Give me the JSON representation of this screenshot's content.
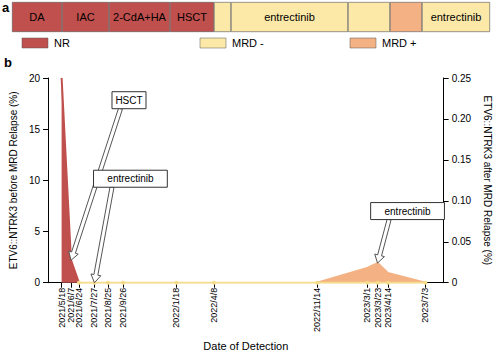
{
  "chart_data": [
    {
      "type": "bar",
      "panel": "a",
      "orientation": "horizontal",
      "stacked": true,
      "tick_labels": false,
      "xlim": [
        0,
        478
      ],
      "legend": "bottom",
      "statuses": [
        {
          "name": "NR",
          "color": "#c0504d"
        },
        {
          "name": "MRD -",
          "color": "#fce9a8"
        },
        {
          "name": "MRD +",
          "color": "#f4b183"
        }
      ],
      "segments": [
        {
          "label": "DA",
          "status": "NR",
          "value": 50
        },
        {
          "label": "IAC",
          "status": "NR",
          "value": 47
        },
        {
          "label": "2-CdA+HA",
          "status": "NR",
          "value": 61
        },
        {
          "label": "HSCT",
          "status": "NR",
          "value": 44
        },
        {
          "label": null,
          "status": "MRD -",
          "value": 17
        },
        {
          "label": "entrectinib",
          "status": "MRD -",
          "value": 117
        },
        {
          "label": null,
          "status": "MRD -",
          "value": 42
        },
        {
          "label": null,
          "status": "MRD +",
          "value": 32
        },
        {
          "label": "entrectinib",
          "status": "MRD -",
          "value": 68
        }
      ]
    },
    {
      "type": "line",
      "panel": "b",
      "x_label": "Date of Detection",
      "y_label": "ETV6::NTRK3 before MRD Relapse (%)",
      "y2_label": "ETV6::NTRK3 after MRD Relapse (%)",
      "x": [
        "2021/5/18",
        "2021/6/7",
        "2021/6/24",
        "2021/7/27",
        "2021/8/25",
        "2021/9/26",
        "2022/1/18",
        "2022/4/8",
        "2022/11/14",
        "2023/3/1",
        "2023/3/23",
        "2023/4/14",
        "2023/7/3"
      ],
      "xlim": [
        "2021/4/19",
        "2023/8/11"
      ],
      "xticks": [
        "2021/5/18",
        "2021/6/7",
        "2021/6/24",
        "2021/7/27",
        "2021/8/25",
        "2021/9/26",
        "2022/1/18",
        "2022/4/8",
        "2022/11/14",
        "2023/3/1",
        "2023/3/23",
        "2023/4/14",
        "2023/7/3"
      ],
      "ylim": [
        0,
        20
      ],
      "yticks": [
        0,
        5,
        10,
        15,
        20
      ],
      "y2lim": [
        0,
        0.25
      ],
      "y2ticks": [
        0,
        0.05,
        {
          "value": 0.1,
          "label": "0.10"
        },
        0.15,
        {
          "value": 0.2,
          "label": "0.20"
        },
        0.25
      ],
      "grid": false,
      "series": [
        {
          "type": "area",
          "color": "#c0504d",
          "axis": "y",
          "line_style": "solid",
          "marker": "none",
          "values": [
            20,
            2.2,
            0,
            null,
            null,
            null,
            null,
            null,
            null,
            null,
            null,
            null,
            null
          ]
        },
        {
          "type": "line",
          "color": "#f5dc8a",
          "axis": "y",
          "line_style": "solid",
          "marker": "circle",
          "values": [
            null,
            null,
            0,
            0,
            0,
            0,
            0,
            0,
            0,
            0,
            0,
            0,
            0
          ]
        },
        {
          "type": "area",
          "color": "#f4b183",
          "axis": "y2",
          "line_style": "solid",
          "marker": "none",
          "values": [
            null,
            null,
            null,
            null,
            null,
            null,
            null,
            null,
            0,
            0.018,
            0.024,
            0.012,
            0
          ]
        }
      ],
      "annotations": [
        {
          "text": "HSCT",
          "x": "2021/6/7",
          "y": 2.2,
          "axis": "y"
        },
        {
          "text": "entrectinib",
          "x": "2021/7/27",
          "y": 0,
          "axis": "y"
        },
        {
          "text": "entrectinib",
          "x": "2023/3/23",
          "y": 0.024,
          "axis": "y2"
        }
      ]
    }
  ]
}
